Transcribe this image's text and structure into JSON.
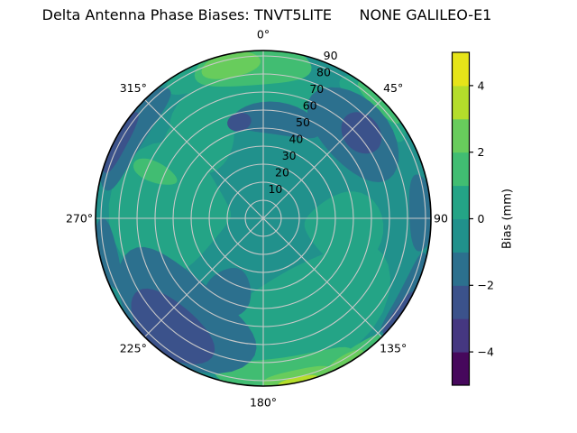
{
  "title": "Delta Antenna Phase Biases: TNVT5LITE      NONE GALILEO-E1",
  "chart_data": {
    "type": "heatmap",
    "subtype": "polar-filled-contour",
    "title": "Delta Antenna Phase Biases: TNVT5LITE      NONE GALILEO-E1",
    "theta_ticks": [
      {
        "angle_deg": 0,
        "label": "0°"
      },
      {
        "angle_deg": 45,
        "label": "45°"
      },
      {
        "angle_deg": 90,
        "label": "90"
      },
      {
        "angle_deg": 135,
        "label": "135°"
      },
      {
        "angle_deg": 180,
        "label": "180°"
      },
      {
        "angle_deg": 225,
        "label": "225°"
      },
      {
        "angle_deg": 270,
        "label": "270°"
      },
      {
        "angle_deg": 315,
        "label": "315°"
      }
    ],
    "r_ticks": [
      10,
      20,
      30,
      40,
      50,
      60,
      70,
      80,
      90
    ],
    "r_max": 93,
    "r_label_angle_deg": 22.5,
    "grid": true,
    "grid_color": "#c9c9c9",
    "boundary_color": "#000000",
    "colorbar": {
      "label": "Bias (mm)",
      "min": -5,
      "max": 5,
      "tick_values": [
        -4,
        -2,
        0,
        2,
        4
      ],
      "tick_labels": [
        "−4",
        "−2",
        "0",
        "2",
        "4"
      ],
      "band_colors_bottom_to_top": [
        "#46085c",
        "#453781",
        "#3b528b",
        "#2c708e",
        "#21918c",
        "#24a486",
        "#41bd72",
        "#68cc5c",
        "#b4dd2b",
        "#e6e419"
      ]
    },
    "band_colors": {
      "m3m2": "#3b528b",
      "m2m1": "#2c708e",
      "m1z0": "#21918c",
      "z0p1": "#24a486",
      "p1p2": "#41bd72",
      "p2p3": "#68cc5c",
      "p3p4": "#b4dd2b"
    },
    "band_values_mm": {
      "m3m2": "-3 to -2",
      "m2m1": "-2 to -1",
      "m1z0": "-1 to 0",
      "z0p1": "0 to 1",
      "p1p2": "1 to 2",
      "p2p3": "2 to 3",
      "p3p4": "3 to 4"
    },
    "background_band": "m1z0",
    "band_draw_order": [
      "z0p1",
      "p1p2",
      "p2p3",
      "p3p4",
      "m2m1",
      "m3m2"
    ],
    "regions": [
      {
        "band": "z0p1",
        "theta": -8,
        "r": 70,
        "theta_halfspan": 38,
        "r_halfspan": 14
      },
      {
        "band": "z0p1",
        "theta": -40,
        "r": 55,
        "theta_halfspan": 22,
        "r_halfspan": 18
      },
      {
        "band": "z0p1",
        "theta": 275,
        "r": 52,
        "theta_halfspan": 38,
        "r_halfspan": 34
      },
      {
        "band": "z0p1",
        "theta": 152,
        "r": 60,
        "theta_halfspan": 48,
        "r_halfspan": 28
      },
      {
        "band": "z0p1",
        "theta": 45,
        "r": 88,
        "theta_halfspan": 16,
        "r_halfspan": 9
      },
      {
        "band": "z0p1",
        "theta": 97,
        "r": 45,
        "theta_halfspan": 25,
        "r_halfspan": 22
      },
      {
        "band": "z0p1",
        "theta": -25,
        "r": 88,
        "theta_halfspan": 12,
        "r_halfspan": 8
      },
      {
        "band": "p1p2",
        "theta": -4,
        "r": 86,
        "theta_halfspan": 22,
        "r_halfspan": 12
      },
      {
        "band": "p1p2",
        "theta": 293,
        "r": 65,
        "theta_halfspan": 5,
        "r_halfspan": 13
      },
      {
        "band": "p1p2",
        "theta": 172,
        "r": 88,
        "theta_halfspan": 26,
        "r_halfspan": 10
      },
      {
        "band": "p1p2",
        "theta": 45,
        "r": 92,
        "theta_halfspan": 10,
        "r_halfspan": 5
      },
      {
        "band": "p1p2",
        "theta": 147,
        "r": 92,
        "theta_halfspan": 12,
        "r_halfspan": 5
      },
      {
        "band": "p2p3",
        "theta": -12,
        "r": 87,
        "theta_halfspan": 11,
        "r_halfspan": 7
      },
      {
        "band": "p2p3",
        "theta": 168,
        "r": 91,
        "theta_halfspan": 12,
        "r_halfspan": 5
      },
      {
        "band": "p2p3",
        "theta": 150,
        "r": 92,
        "theta_halfspan": 7,
        "r_halfspan": 4
      },
      {
        "band": "p3p4",
        "theta": 168,
        "r": 93,
        "theta_halfspan": 7,
        "r_halfspan": 3
      },
      {
        "band": "m2m1",
        "theta": 8,
        "r": 56,
        "theta_halfspan": 26,
        "r_halfspan": 9
      },
      {
        "band": "m2m1",
        "theta": 47,
        "r": 70,
        "theta_halfspan": 26,
        "r_halfspan": 18
      },
      {
        "band": "m2m1",
        "theta": 302,
        "r": 88,
        "theta_halfspan": 22,
        "r_halfspan": 9
      },
      {
        "band": "m2m1",
        "theta": 257,
        "r": 89,
        "theta_halfspan": 13,
        "r_halfspan": 6
      },
      {
        "band": "m2m1",
        "theta": 220,
        "r": 72,
        "theta_halfspan": 37,
        "r_halfspan": 23
      },
      {
        "band": "m2m1",
        "theta": 205,
        "r": 45,
        "theta_halfspan": 16,
        "r_halfspan": 14
      },
      {
        "band": "m2m1",
        "theta": 88,
        "r": 88,
        "theta_halfspan": 14,
        "r_halfspan": 7
      },
      {
        "band": "m2m1",
        "theta": 118,
        "r": 91,
        "theta_halfspan": 16,
        "r_halfspan": 5
      },
      {
        "band": "m3m2",
        "theta": 220,
        "r": 80,
        "theta_halfspan": 20,
        "r_halfspan": 14
      },
      {
        "band": "m3m2",
        "theta": 298,
        "r": 91,
        "theta_halfspan": 12,
        "r_halfspan": 5
      },
      {
        "band": "m3m2",
        "theta": 125,
        "r": 93,
        "theta_halfspan": 9,
        "r_halfspan": 4
      },
      {
        "band": "m3m2",
        "theta": -14,
        "r": 55,
        "theta_halfspan": 7,
        "r_halfspan": 5
      },
      {
        "band": "m3m2",
        "theta": 49,
        "r": 72,
        "theta_halfspan": 10,
        "r_halfspan": 10
      }
    ]
  }
}
